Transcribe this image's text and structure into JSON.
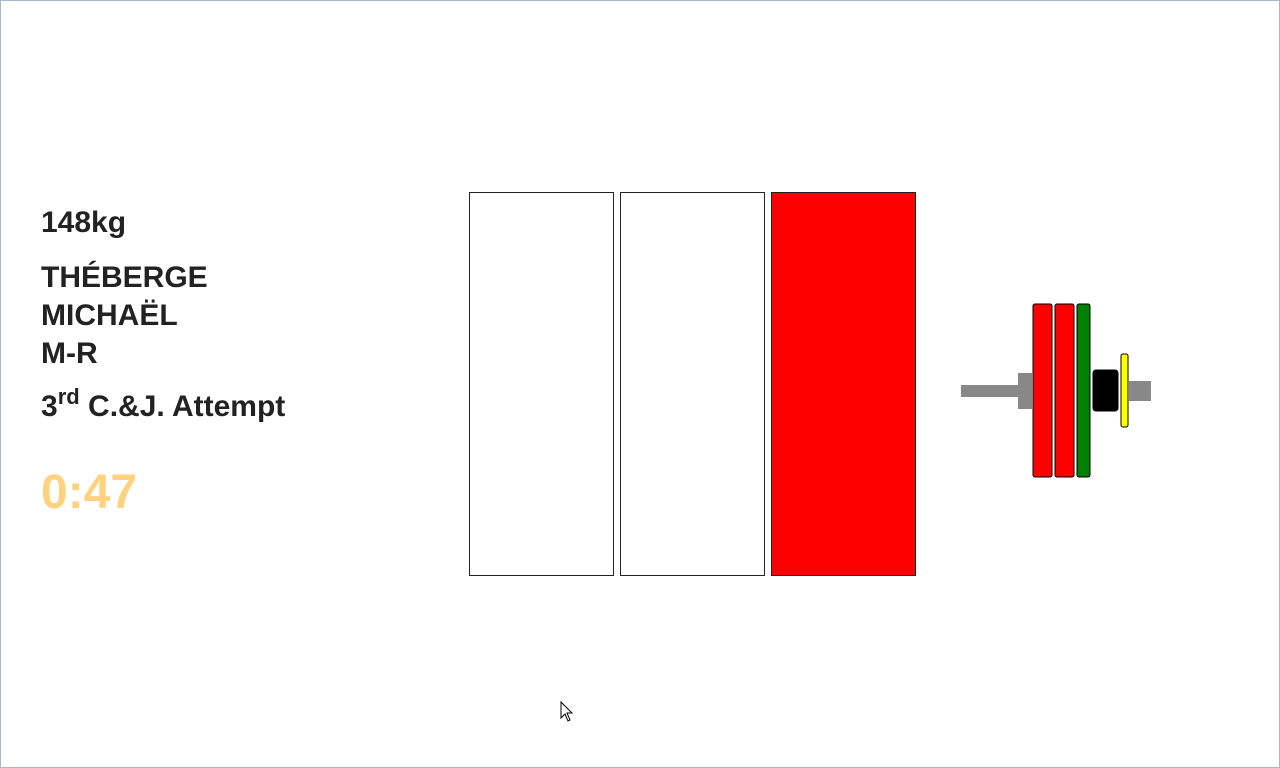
{
  "lifter": {
    "requested_weight": "148kg",
    "last_name": "THÉBERGE",
    "first_name": "MICHAËL",
    "team": "M-R"
  },
  "attempt": {
    "number": "3",
    "ordinal_suffix": "rd",
    "label": "C.&J. Attempt"
  },
  "clock": {
    "time": "0:47",
    "color": "#ffd27f"
  },
  "decision_lights": [
    {
      "referee": 1,
      "color": "#ffffff"
    },
    {
      "referee": 2,
      "color": "#ffffff"
    },
    {
      "referee": 3,
      "color": "#ff0000"
    }
  ],
  "plate_loading": [
    {
      "plate": "red-plate",
      "color": "#ff0000"
    },
    {
      "plate": "red-plate",
      "color": "#ff0000"
    },
    {
      "plate": "green-plate",
      "color": "#008000"
    },
    {
      "plate": "small-black-plate",
      "color": "#000000"
    },
    {
      "plate": "collar",
      "color": "#ffff00"
    }
  ]
}
